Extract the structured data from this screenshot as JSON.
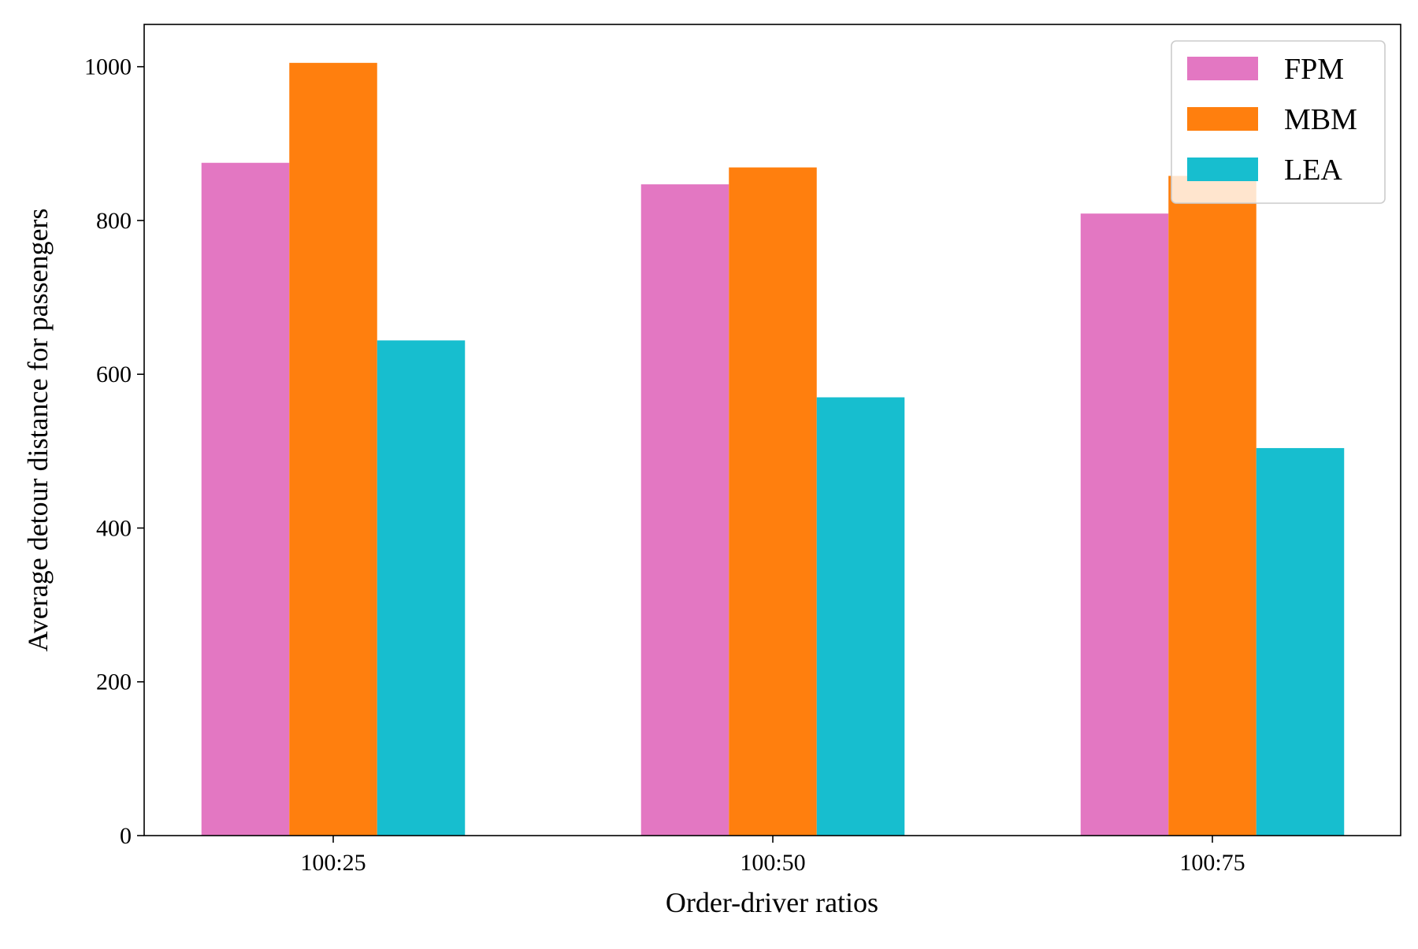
{
  "chart_data": {
    "type": "bar",
    "categories": [
      "100:25",
      "100:50",
      "100:75"
    ],
    "series": [
      {
        "name": "FPM",
        "color": "#e377c2",
        "values": [
          875,
          847,
          809
        ]
      },
      {
        "name": "MBM",
        "color": "#ff7f0e",
        "values": [
          1005,
          869,
          858
        ]
      },
      {
        "name": "LEA",
        "color": "#17becf",
        "values": [
          644,
          570,
          504
        ]
      }
    ],
    "title": "",
    "xlabel": "Order-driver ratios",
    "ylabel": "Average detour distance for passengers",
    "ylim": [
      0,
      1055
    ],
    "yticks": [
      0,
      200,
      400,
      600,
      800,
      1000
    ],
    "grid": false,
    "legend_position": "top-right"
  }
}
